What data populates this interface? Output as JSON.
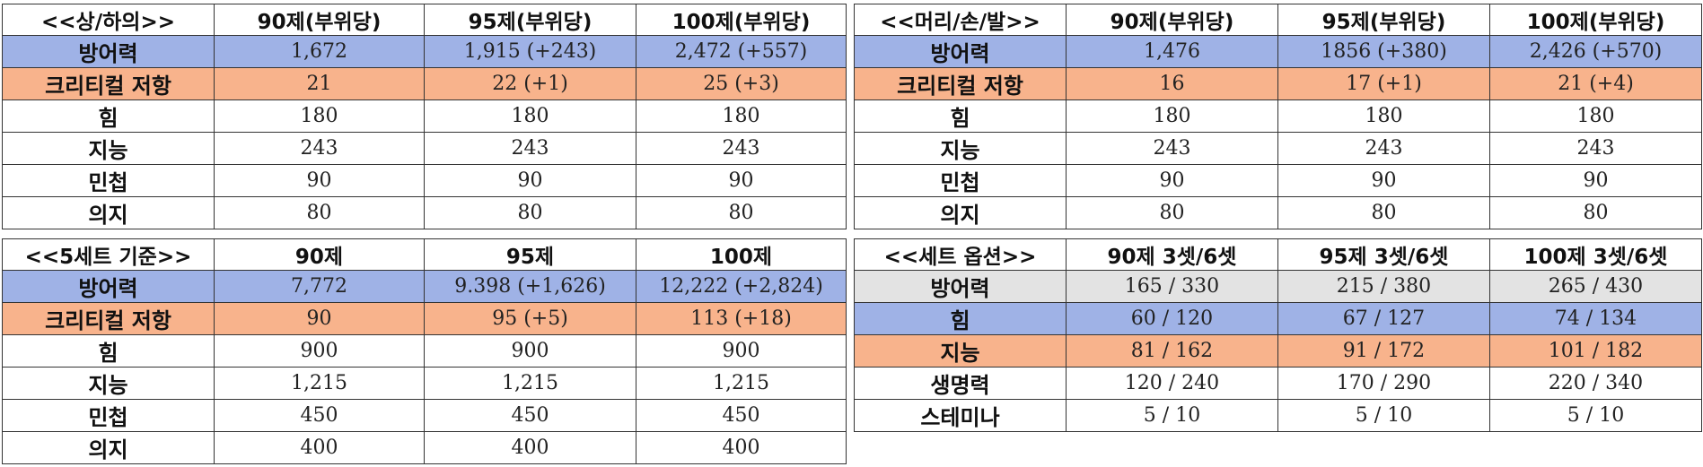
{
  "tables": [
    {
      "headers": [
        "<<상/하의>>",
        "90제(부위당)",
        "95제(부위당)",
        "100제(부위당)"
      ],
      "rows": [
        [
          "방어력",
          "1,672",
          "1,915 (+243)",
          "2,472 (+557)"
        ],
        [
          "크리티컬 저항",
          "21",
          "22 (+1)",
          "25 (+3)"
        ],
        [
          "힘",
          "180",
          "180",
          "180"
        ],
        [
          "지능",
          "243",
          "243",
          "243"
        ],
        [
          "민첩",
          "90",
          "90",
          "90"
        ],
        [
          "의지",
          "80",
          "80",
          "80"
        ]
      ]
    },
    {
      "headers": [
        "<<머리/손/발>>",
        "90제(부위당)",
        "95제(부위당)",
        "100제(부위당)"
      ],
      "rows": [
        [
          "방어력",
          "1,476",
          "1856 (+380)",
          "2,426 (+570)"
        ],
        [
          "크리티컬 저항",
          "16",
          "17 (+1)",
          "21 (+4)"
        ],
        [
          "힘",
          "180",
          "180",
          "180"
        ],
        [
          "지능",
          "243",
          "243",
          "243"
        ],
        [
          "민첩",
          "90",
          "90",
          "90"
        ],
        [
          "의지",
          "80",
          "80",
          "80"
        ]
      ]
    },
    {
      "headers": [
        "<<5세트 기준>>",
        "90제",
        "95제",
        "100제"
      ],
      "rows": [
        [
          "방어력",
          "7,772",
          "9.398 (+1,626)",
          "12,222 (+2,824)"
        ],
        [
          "크리티컬 저항",
          "90",
          "95 (+5)",
          "113 (+18)"
        ],
        [
          "힘",
          "900",
          "900",
          "900"
        ],
        [
          "지능",
          "1,215",
          "1,215",
          "1,215"
        ],
        [
          "민첩",
          "450",
          "450",
          "450"
        ],
        [
          "의지",
          "400",
          "400",
          "400"
        ]
      ]
    },
    {
      "headers": [
        "<<세트 옵션>>",
        "90제 3셋/6셋",
        "95제 3셋/6셋",
        "100제 3셋/6셋"
      ],
      "rows": [
        [
          "방어력",
          "165 / 330",
          "215 / 380",
          "265 / 430"
        ],
        [
          "힘",
          "60 / 120",
          "67 / 127",
          "74 / 134"
        ],
        [
          "지능",
          "81 / 162",
          "91 / 172",
          "101 / 182"
        ],
        [
          "생명력",
          "120 / 240",
          "170 / 290",
          "220 / 340"
        ],
        [
          "스테미나",
          "5 / 10",
          "5 / 10",
          "5 / 10"
        ]
      ]
    }
  ],
  "colors": {
    "blue_row": "#9fb2e6",
    "orange_row": "#f8b38c",
    "gray_row": "#e3e3e3",
    "border": "#333333"
  }
}
